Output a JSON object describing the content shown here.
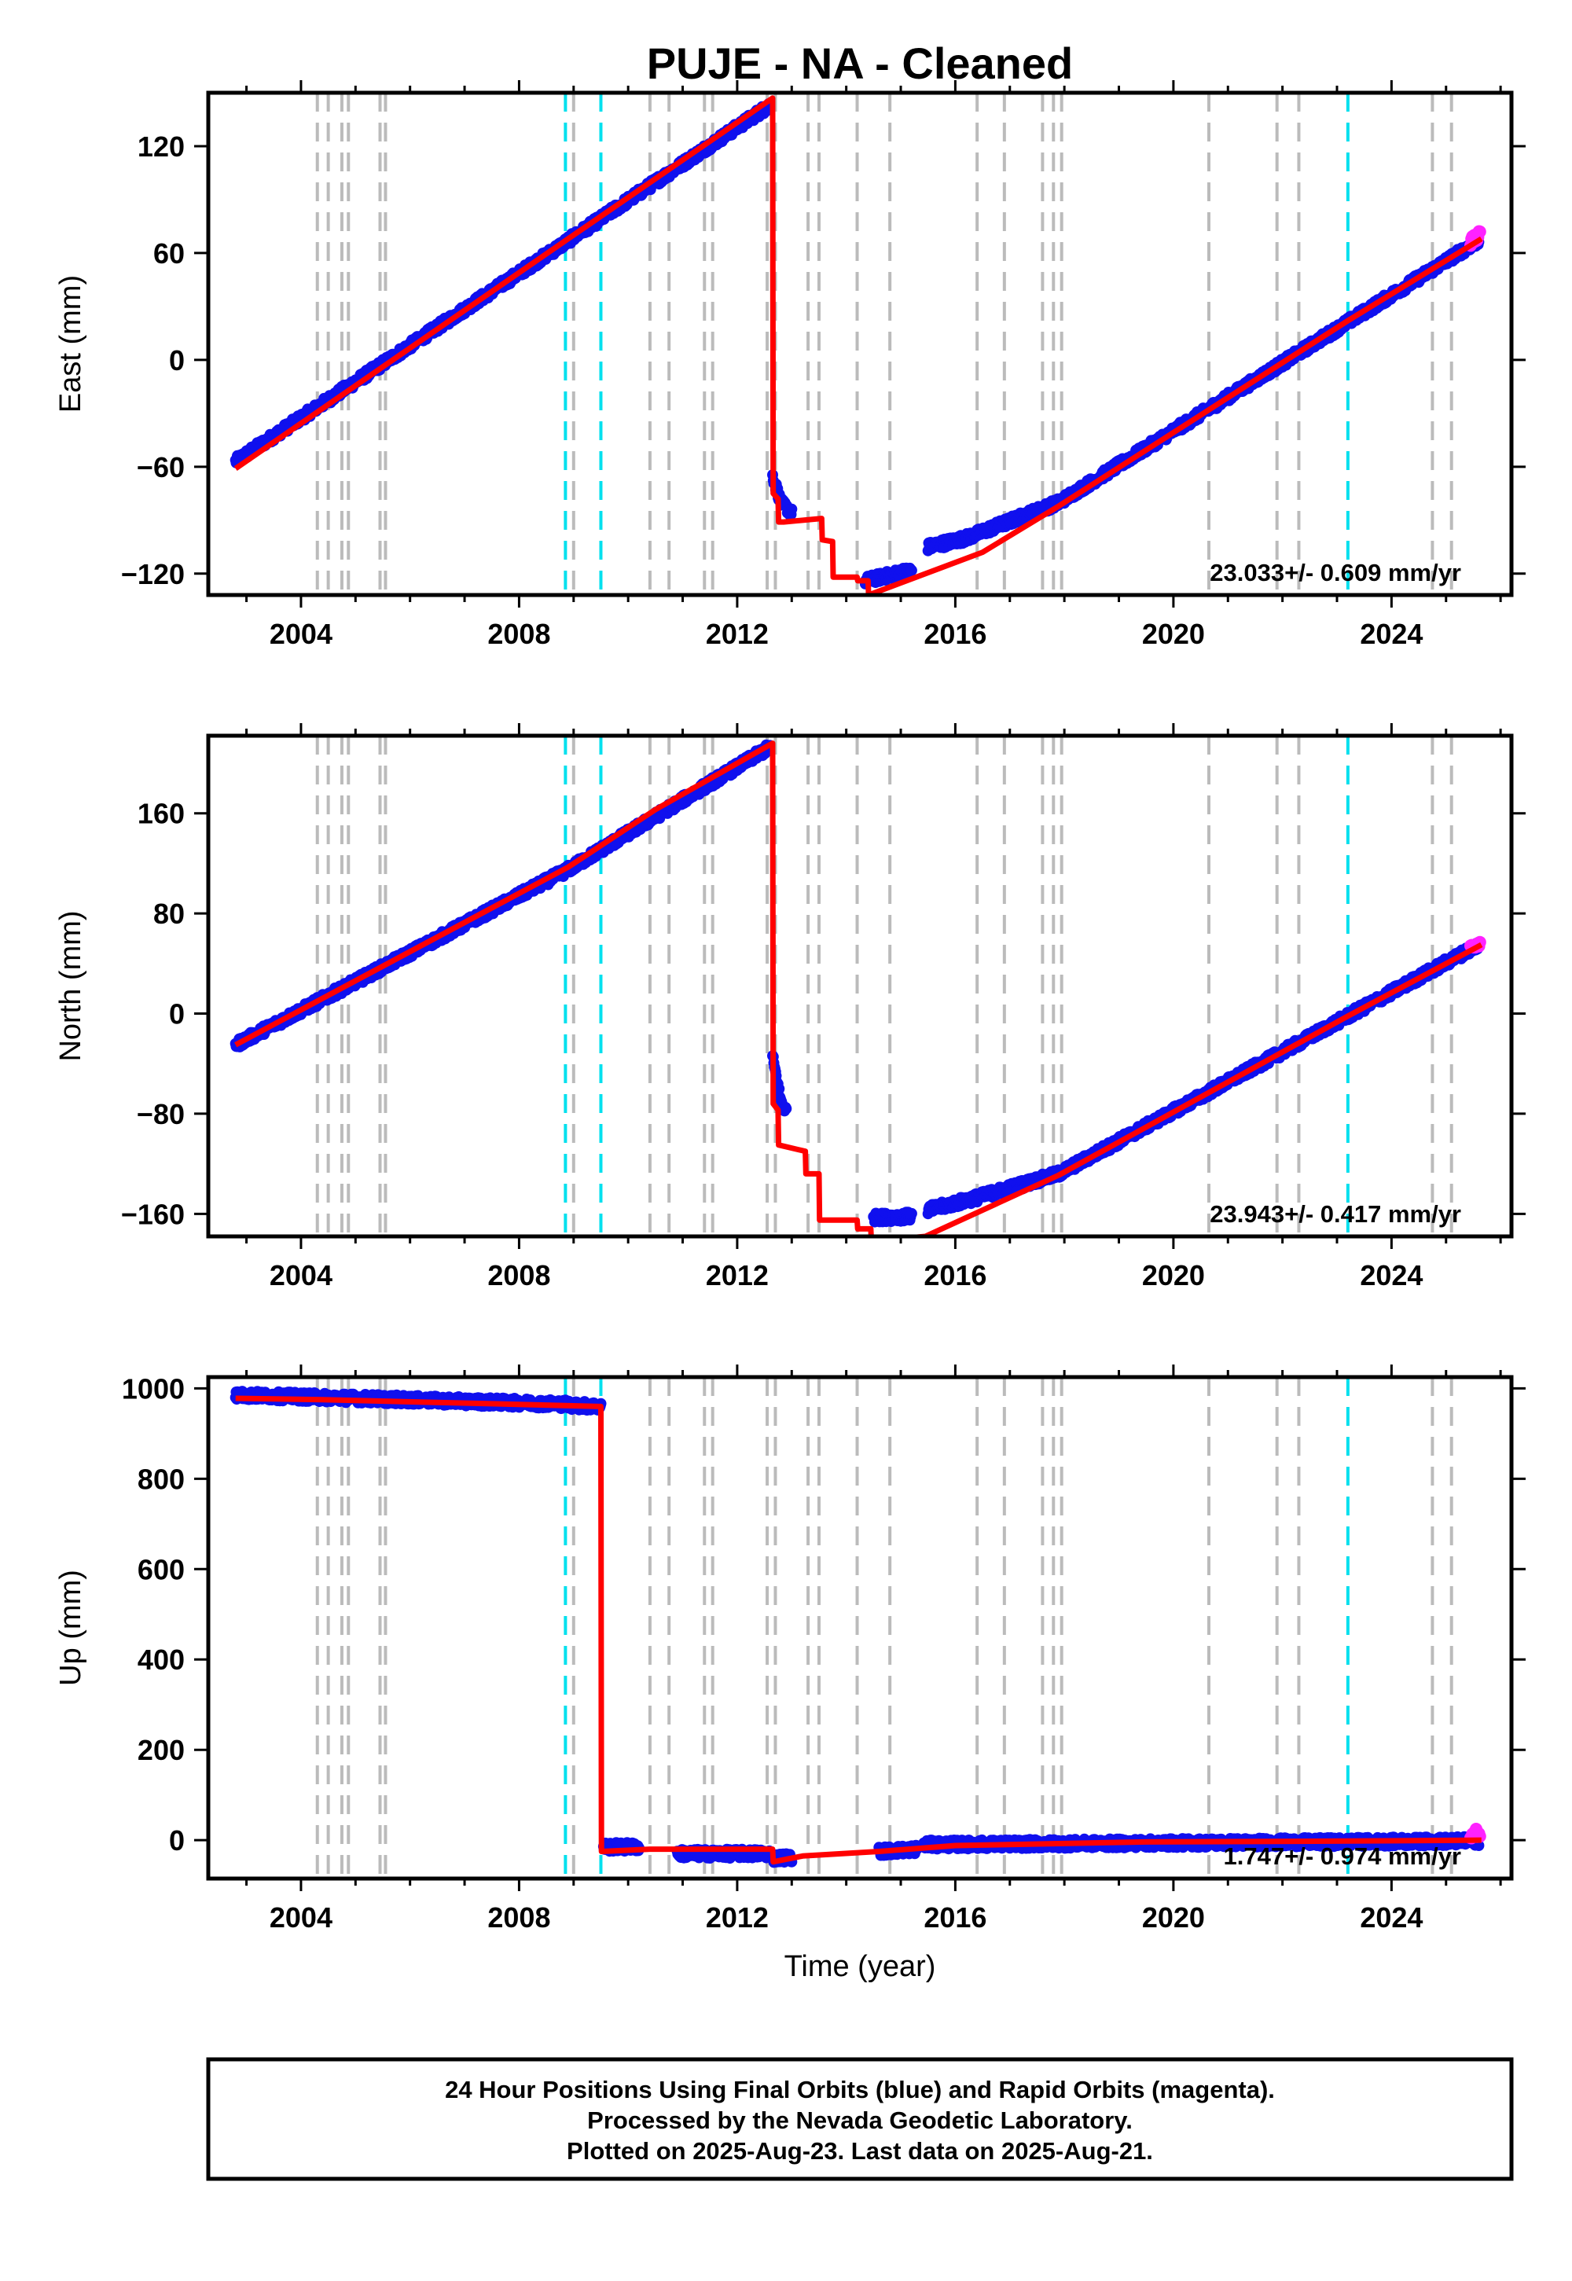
{
  "title": "PUJE  - NA - Cleaned",
  "xlabel": "Time (year)",
  "caption": [
    "24 Hour Positions Using Final Orbits (blue) and Rapid Orbits (magenta).",
    "Processed by the Nevada Geodetic Laboratory.",
    "Plotted on 2025-Aug-23. Last data on 2025-Aug-21."
  ],
  "colors": {
    "final": "#1010ee",
    "rapid": "#ff22ff",
    "model": "#ff0000",
    "equip": "#bbbbbb",
    "quake": "#00e0ee"
  },
  "chart_data": [
    {
      "type": "scatter",
      "ylabel": "East (mm)",
      "xlim": [
        2002.3,
        2026.2
      ],
      "ylim": [
        -132,
        150
      ],
      "xticks": [
        2004,
        2008,
        2012,
        2016,
        2020,
        2024
      ],
      "yticks": [
        -120,
        -60,
        0,
        60,
        120
      ],
      "rate": "23.033+/- 0.609 mm/yr",
      "events_gray": [
        2004.3,
        2004.5,
        2004.75,
        2004.87,
        2005.45,
        2005.55,
        2009.0,
        2010.4,
        2010.75,
        2011.4,
        2011.55,
        2012.55,
        2012.7,
        2013.3,
        2013.5,
        2014.2,
        2014.8,
        2016.4,
        2016.9,
        2017.6,
        2017.8,
        2017.95,
        2020.65,
        2021.9,
        2022.3,
        2024.75,
        2025.1
      ],
      "events_quake": [
        2008.85,
        2009.5,
        2023.2
      ],
      "series": [
        {
          "name": "Final Orbits",
          "segments": [
            {
              "x": [
                2002.8,
                2008.9,
                2012.6
              ],
              "y": [
                -57,
                67,
                143
              ]
            },
            {
              "x": [
                2012.65,
                2012.8,
                2013.0
              ],
              "y": [
                -65,
                -80,
                -86
              ]
            },
            {
              "x": [
                2014.35,
                2015.2
              ],
              "y": [
                -124,
                -118
              ]
            },
            {
              "x": [
                2015.5,
                2016.2,
                2017.9
              ],
              "y": [
                -105,
                -100,
                -80
              ]
            },
            {
              "x": [
                2017.9,
                2025.6
              ],
              "y": [
                -80,
                67
              ]
            }
          ]
        },
        {
          "name": "Rapid Orbits",
          "segments": [
            {
              "x": [
                2025.45,
                2025.62
              ],
              "y": [
                66,
                70
              ]
            }
          ]
        }
      ],
      "model": {
        "x": [
          2002.8,
          2008.9,
          2012.65,
          2012.66,
          2012.75,
          2012.76,
          2012.85,
          2013.55,
          2013.56,
          2013.75,
          2013.76,
          2014.2,
          2014.21,
          2014.4,
          2014.41,
          2016.5,
          2017.9,
          2023.2,
          2025.65
        ],
        "y": [
          -61,
          68,
          147,
          -75,
          -78,
          -91,
          -91,
          -89,
          -101,
          -102,
          -122,
          -122,
          -124,
          -124,
          -132,
          -108,
          -82,
          22,
          68
        ]
      }
    },
    {
      "type": "scatter",
      "ylabel": "North (mm)",
      "xlim": [
        2002.3,
        2026.2
      ],
      "ylim": [
        -178,
        222
      ],
      "xticks": [
        2004,
        2008,
        2012,
        2016,
        2020,
        2024
      ],
      "yticks": [
        -160,
        -80,
        0,
        80,
        160
      ],
      "rate": "23.943+/- 0.417 mm/yr",
      "events_gray": [
        2004.3,
        2004.5,
        2004.75,
        2004.87,
        2005.45,
        2005.55,
        2009.0,
        2010.4,
        2010.75,
        2011.4,
        2011.55,
        2012.55,
        2012.7,
        2013.3,
        2013.5,
        2014.2,
        2014.8,
        2016.4,
        2016.9,
        2017.6,
        2017.8,
        2017.95,
        2020.65,
        2021.9,
        2022.3,
        2024.75,
        2025.1
      ],
      "events_quake": [
        2008.85,
        2009.5,
        2023.2
      ],
      "series": [
        {
          "name": "Final Orbits",
          "segments": [
            {
              "x": [
                2002.8,
                2008.9,
                2012.6
              ],
              "y": [
                -25,
                115,
                213
              ]
            },
            {
              "x": [
                2012.65,
                2012.8,
                2012.9
              ],
              "y": [
                -35,
                -70,
                -78
              ]
            },
            {
              "x": [
                2014.5,
                2015.2
              ],
              "y": [
                -163,
                -162
              ]
            },
            {
              "x": [
                2015.5,
                2016.4,
                2017.9
              ],
              "y": [
                -157,
                -147,
                -128
              ]
            },
            {
              "x": [
                2017.9,
                2025.6
              ],
              "y": [
                -128,
                55
              ]
            }
          ]
        },
        {
          "name": "Rapid Orbits",
          "segments": [
            {
              "x": [
                2025.45,
                2025.62
              ],
              "y": [
                52,
                58
              ]
            }
          ]
        }
      ],
      "model": {
        "x": [
          2002.8,
          2008.9,
          2010.5,
          2012.65,
          2012.66,
          2012.75,
          2012.76,
          2013.25,
          2013.26,
          2013.5,
          2013.51,
          2014.2,
          2014.21,
          2014.45,
          2014.46,
          2015.45,
          2017.9,
          2023.2,
          2025.65
        ],
        "y": [
          -25,
          117,
          163,
          216,
          -72,
          -77,
          -105,
          -110,
          -128,
          -128,
          -165,
          -165,
          -172,
          -172,
          -182,
          -178,
          -129,
          -2,
          55
        ]
      }
    },
    {
      "type": "scatter",
      "ylabel": "Up (mm)",
      "xlim": [
        2002.3,
        2026.2
      ],
      "ylim": [
        -85,
        1025
      ],
      "xticks": [
        2004,
        2008,
        2012,
        2016,
        2020,
        2024
      ],
      "yticks": [
        0,
        200,
        400,
        600,
        800,
        1000
      ],
      "rate": "1.747+/- 0.974 mm/yr",
      "events_gray": [
        2004.3,
        2004.5,
        2004.75,
        2004.87,
        2005.45,
        2005.55,
        2009.0,
        2010.4,
        2010.75,
        2011.4,
        2011.55,
        2012.55,
        2012.7,
        2013.3,
        2013.5,
        2014.2,
        2014.8,
        2016.4,
        2016.9,
        2017.6,
        2017.8,
        2017.95,
        2020.65,
        2021.9,
        2022.3,
        2024.75,
        2025.1
      ],
      "events_quake": [
        2008.85,
        2009.5,
        2023.2
      ],
      "series": [
        {
          "name": "Final Orbits",
          "segments": [
            {
              "x": [
                2002.8,
                2004.4,
                2008.85
              ],
              "y": [
                985,
                980,
                965
              ]
            },
            {
              "x": [
                2008.9,
                2009.5
              ],
              "y": [
                963,
                960
              ]
            },
            {
              "x": [
                2009.55,
                2010.2
              ],
              "y": [
                -15,
                -15
              ]
            },
            {
              "x": [
                2010.9,
                2012.6
              ],
              "y": [
                -30,
                -30
              ]
            },
            {
              "x": [
                2012.65,
                2013.0
              ],
              "y": [
                -40,
                -38
              ]
            },
            {
              "x": [
                2014.6,
                2015.3
              ],
              "y": [
                -25,
                -20
              ]
            },
            {
              "x": [
                2015.4,
                2025.6
              ],
              "y": [
                -10,
                -2
              ]
            }
          ]
        },
        {
          "name": "Rapid Orbits",
          "segments": [
            {
              "x": [
                2025.45,
                2025.62
              ],
              "y": [
                10,
                18
              ]
            }
          ]
        }
      ],
      "model": {
        "x": [
          2002.8,
          2004.4,
          2008.85,
          2009.5,
          2009.51,
          2010.4,
          2012.65,
          2012.66,
          2013.2,
          2014.6,
          2016.0,
          2019.5,
          2023.2,
          2025.65
        ],
        "y": [
          978,
          975,
          962,
          960,
          -25,
          -20,
          -20,
          -48,
          -35,
          -25,
          -12,
          -4,
          -2,
          0
        ]
      }
    }
  ]
}
